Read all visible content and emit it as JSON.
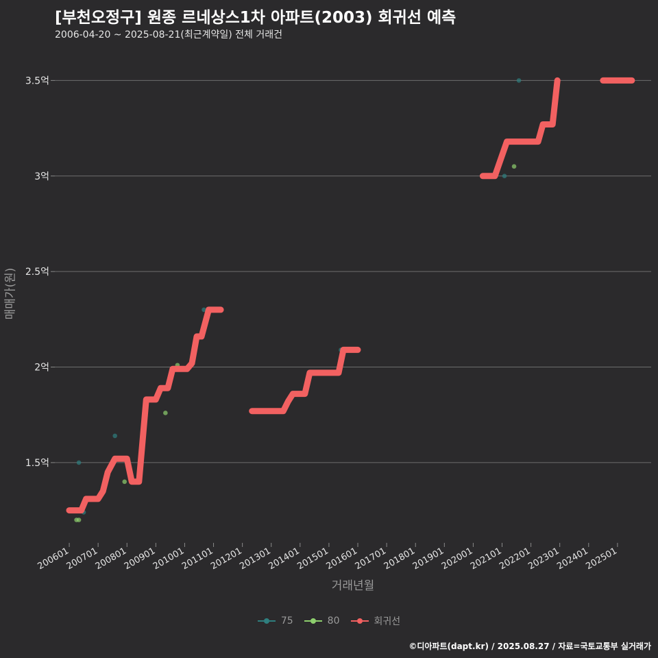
{
  "title": "[부천오정구] 원종 르네상스1차 아파트(2003) 회귀선 예측",
  "subtitle": "2006-04-20 ~ 2025-08-21(최근계약일) 전체 거래건",
  "caption": "©디아파트(dapt.kr) / 2025.08.27 / 자료=국토교통부 실거래가",
  "colors": {
    "background": "#2b2a2c",
    "grid": "#6e6e6e",
    "s75": "#2f7f7f",
    "s80": "#8ecf6e",
    "regression": "#f26161"
  },
  "chart_data": {
    "type": "scatter",
    "xlabel": "거래년월",
    "ylabel": "매매가(원)",
    "x_ticks": [
      "200601",
      "200701",
      "200801",
      "200901",
      "201001",
      "201101",
      "201201",
      "201301",
      "201401",
      "201501",
      "201601",
      "201701",
      "201801",
      "201901",
      "202001",
      "202101",
      "202201",
      "202301",
      "202401",
      "202501"
    ],
    "y_ticks": [
      {
        "value": 1.5,
        "label": "1.5억"
      },
      {
        "value": 2.0,
        "label": "2억"
      },
      {
        "value": 2.5,
        "label": "2.5억"
      },
      {
        "value": 3.0,
        "label": "3억"
      },
      {
        "value": 3.5,
        "label": "3.5억"
      }
    ],
    "xlim": [
      "2005-07",
      "2026-03"
    ],
    "ylim": [
      1.08,
      3.67
    ],
    "legend": {
      "position": "bottom",
      "items": [
        {
          "name": "75",
          "key": "s75"
        },
        {
          "name": "80",
          "key": "s80"
        },
        {
          "name": "회귀선",
          "key": "regression"
        }
      ]
    },
    "series": [
      {
        "name": "75",
        "color_key": "s75",
        "points": [
          [
            "2006-05",
            1.5
          ],
          [
            "2006-07",
            1.24
          ],
          [
            "2007-08",
            1.64
          ],
          [
            "2010-09",
            2.3
          ],
          [
            "2013-12",
            1.86
          ],
          [
            "2015-06",
            2.09
          ],
          [
            "2021-02",
            3.0
          ],
          [
            "2021-08",
            3.5
          ]
        ]
      },
      {
        "name": "80",
        "color_key": "s80",
        "points": [
          [
            "2006-04",
            1.2
          ],
          [
            "2006-05",
            1.2
          ],
          [
            "2007-12",
            1.4
          ],
          [
            "2009-05",
            1.76
          ],
          [
            "2009-10",
            2.01
          ],
          [
            "2021-06",
            3.05
          ]
        ]
      },
      {
        "name": "회귀선",
        "color_key": "regression",
        "points": [
          [
            "2006-01",
            1.25
          ],
          [
            "2006-06",
            1.25
          ],
          [
            "2006-08",
            1.31
          ],
          [
            "2007-01",
            1.31
          ],
          [
            "2007-03",
            1.35
          ],
          [
            "2007-05",
            1.45
          ],
          [
            "2007-08",
            1.52
          ],
          [
            "2008-01",
            1.52
          ],
          [
            "2008-03",
            1.4
          ],
          [
            "2008-06",
            1.4
          ],
          [
            "2008-09",
            1.83
          ],
          [
            "2009-01",
            1.83
          ],
          [
            "2009-03",
            1.89
          ],
          [
            "2009-06",
            1.89
          ],
          [
            "2009-08",
            1.99
          ],
          [
            "2010-02",
            1.99
          ],
          [
            "2010-04",
            2.02
          ],
          [
            "2010-06",
            2.16
          ],
          [
            "2010-08",
            2.16
          ],
          [
            "2010-11",
            2.3
          ],
          [
            "2011-04",
            2.3
          ],
          null,
          [
            "2012-05",
            1.77
          ],
          [
            "2013-06",
            1.77
          ],
          [
            "2013-08",
            1.82
          ],
          [
            "2013-10",
            1.86
          ],
          [
            "2014-03",
            1.86
          ],
          [
            "2014-05",
            1.97
          ],
          [
            "2015-05",
            1.97
          ],
          [
            "2015-07",
            2.09
          ],
          [
            "2016-01",
            2.09
          ],
          null,
          [
            "2020-05",
            3.0
          ],
          [
            "2020-10",
            3.0
          ],
          [
            "2021-03",
            3.18
          ],
          [
            "2022-04",
            3.18
          ],
          [
            "2022-06",
            3.27
          ],
          [
            "2022-10",
            3.27
          ],
          [
            "2022-12",
            3.5
          ],
          null,
          [
            "2024-07",
            3.5
          ],
          [
            "2025-07",
            3.5
          ]
        ]
      }
    ]
  }
}
